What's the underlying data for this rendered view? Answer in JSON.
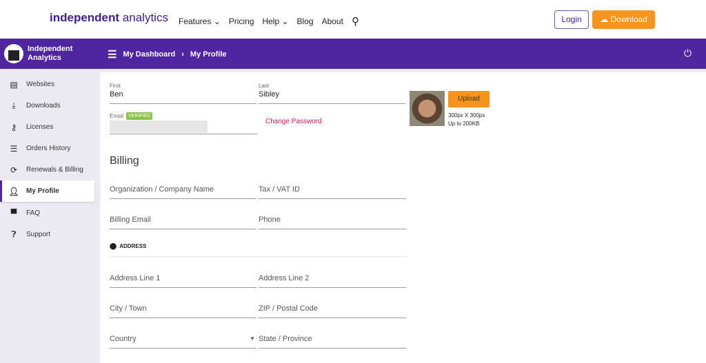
{
  "topnav": {
    "logo": "independent analytics",
    "logo_bold": "independent",
    "logo_light": "analytics",
    "items": [
      "Features",
      "Pricing",
      "Help",
      "Blog",
      "About"
    ],
    "login": "Login",
    "download": "Download"
  },
  "bar": {
    "brand_line1": "Independent",
    "brand_line2": "Analytics",
    "crumb1": "My Dashboard",
    "crumb2": "My Profile"
  },
  "sidebar": {
    "items": [
      {
        "label": "Websites",
        "icon": "browser-icon"
      },
      {
        "label": "Downloads",
        "icon": "download-icon"
      },
      {
        "label": "Licenses",
        "icon": "key-icon"
      },
      {
        "label": "Orders History",
        "icon": "list-icon"
      },
      {
        "label": "Renewals & Billing",
        "icon": "refresh-icon"
      },
      {
        "label": "My Profile",
        "icon": "person-icon",
        "active": true
      },
      {
        "label": "FAQ",
        "icon": "forum-icon"
      },
      {
        "label": "Support",
        "icon": "help-icon"
      }
    ]
  },
  "profile": {
    "first_label": "First",
    "first": "Ben",
    "last_label": "Last",
    "last": "Sibley",
    "email_label": "Email",
    "verified": "VERIFIED",
    "change_password": "Change Password",
    "upload": "Upload",
    "size_note": "300px X 300px",
    "limit_note": "Up to 200KB"
  },
  "billing": {
    "title": "Billing",
    "org": "Organization / Company Name",
    "tax": "Tax / VAT ID",
    "email": "Billing Email",
    "phone": "Phone",
    "address": "ADDRESS",
    "addr1": "Address Line 1",
    "addr2": "Address Line 2",
    "city": "City / Town",
    "zip": "ZIP / Postal Code",
    "country": "Country",
    "state": "State / Province"
  },
  "colors": {
    "brand": "#5025a0",
    "accent": "#f7941d",
    "link": "#c8175d",
    "verified": "#8bc34a"
  }
}
